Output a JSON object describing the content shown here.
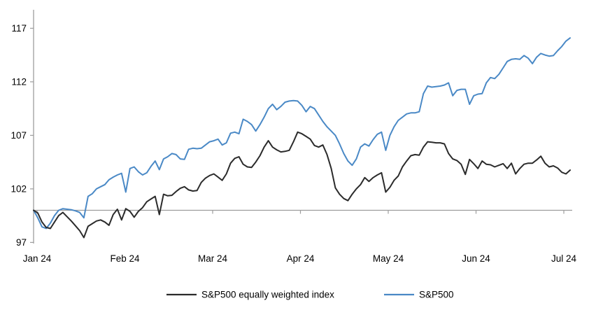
{
  "chart_data": {
    "type": "line",
    "title": "",
    "x_axis": {
      "tick_labels": [
        "Jan 24",
        "Feb 24",
        "Mar 24",
        "Apr 24",
        "May 24",
        "Jun 24",
        "Jul 24"
      ],
      "tick_positions_months": [
        0,
        1,
        2,
        3,
        4,
        5,
        6
      ]
    },
    "y_axis": {
      "tick_labels": [
        "97",
        "102",
        "107",
        "112",
        "117"
      ],
      "tick_values": [
        97,
        102,
        107,
        112,
        117
      ],
      "ylim": [
        97,
        118
      ],
      "baseline_value": 100
    },
    "grid": "off",
    "legend_position": "bottom",
    "x_start_months": -0.04,
    "x_end_months": 6.072,
    "series": [
      {
        "name": "S&P500 equally weighted index",
        "color": "#2b2b2b",
        "values": [
          100.0,
          99.75,
          98.9,
          98.4,
          98.3,
          98.9,
          99.5,
          99.8,
          99.4,
          99.0,
          98.55,
          98.1,
          97.45,
          98.5,
          98.75,
          99.0,
          99.1,
          98.9,
          98.6,
          99.6,
          100.1,
          99.1,
          100.15,
          99.9,
          99.35,
          99.9,
          100.25,
          100.8,
          101.05,
          101.3,
          99.6,
          101.5,
          101.35,
          101.4,
          101.75,
          102.05,
          102.2,
          101.9,
          101.8,
          101.85,
          102.6,
          103.0,
          103.25,
          103.4,
          103.1,
          102.8,
          103.4,
          104.4,
          104.85,
          105.0,
          104.3,
          104.05,
          104.0,
          104.5,
          105.1,
          105.9,
          106.5,
          105.9,
          105.65,
          105.45,
          105.5,
          105.6,
          106.4,
          107.3,
          107.15,
          106.9,
          106.65,
          106.05,
          105.9,
          106.1,
          105.2,
          103.9,
          102.1,
          101.5,
          101.1,
          100.9,
          101.5,
          102.0,
          102.4,
          103.05,
          102.7,
          103.05,
          103.3,
          103.5,
          101.7,
          102.15,
          102.8,
          103.2,
          104.05,
          104.6,
          105.1,
          105.2,
          105.15,
          105.9,
          106.4,
          106.35,
          106.3,
          106.3,
          106.2,
          105.3,
          104.8,
          104.65,
          104.3,
          103.35,
          104.75,
          104.35,
          103.9,
          104.6,
          104.3,
          104.25,
          104.05,
          104.2,
          104.35,
          103.9,
          104.4,
          103.4,
          103.9,
          104.3,
          104.4,
          104.4,
          104.7,
          105.05,
          104.4,
          104.05,
          104.15,
          103.95,
          103.55,
          103.4,
          103.75
        ]
      },
      {
        "name": "S&P500",
        "color": "#4a89c6",
        "values": [
          100.0,
          99.3,
          98.45,
          98.3,
          98.8,
          99.5,
          100.0,
          100.15,
          100.1,
          100.05,
          99.95,
          99.8,
          99.3,
          101.3,
          101.55,
          102.0,
          102.2,
          102.4,
          102.85,
          103.1,
          103.3,
          103.45,
          101.7,
          103.9,
          104.05,
          103.6,
          103.3,
          103.5,
          104.1,
          104.6,
          103.8,
          104.8,
          105.0,
          105.3,
          105.2,
          104.8,
          104.75,
          105.7,
          105.8,
          105.75,
          105.8,
          106.1,
          106.4,
          106.5,
          106.65,
          106.1,
          106.3,
          107.2,
          107.3,
          107.15,
          108.5,
          108.3,
          108.0,
          107.4,
          108.0,
          108.7,
          109.5,
          109.9,
          109.4,
          109.7,
          110.1,
          110.2,
          110.25,
          110.2,
          109.8,
          109.2,
          109.7,
          109.5,
          108.9,
          108.3,
          107.8,
          107.4,
          107.0,
          106.2,
          105.3,
          104.6,
          104.2,
          104.8,
          105.9,
          106.2,
          106.0,
          106.6,
          107.1,
          107.3,
          105.6,
          107.0,
          107.8,
          108.4,
          108.7,
          109.0,
          109.1,
          109.1,
          109.2,
          110.9,
          111.6,
          111.5,
          111.55,
          111.6,
          111.7,
          111.9,
          110.7,
          111.2,
          111.3,
          111.3,
          109.9,
          110.7,
          110.85,
          110.9,
          111.9,
          112.4,
          112.3,
          112.7,
          113.3,
          113.9,
          114.1,
          114.15,
          114.1,
          114.45,
          114.2,
          113.7,
          114.3,
          114.65,
          114.5,
          114.4,
          114.45,
          114.9,
          115.3,
          115.8,
          116.1
        ]
      }
    ],
    "legend": [
      {
        "label": "S&P500 equally weighted index",
        "color": "#2b2b2b"
      },
      {
        "label": "S&P500",
        "color": "#4a89c6"
      }
    ]
  },
  "colors": {
    "axis": "#9d9d9d",
    "baseline": "#9d9d9d",
    "text": "#000000",
    "background": "#ffffff"
  }
}
